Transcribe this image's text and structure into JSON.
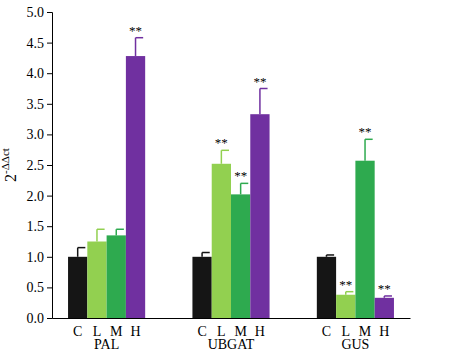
{
  "chart_data": {
    "type": "bar",
    "y_label": "2-ΔΔct",
    "categories": [
      "PAL",
      "UBGAT",
      "GUS"
    ],
    "series": [
      {
        "name": "C",
        "color": "#151515",
        "values": [
          1.0,
          1.0,
          1.0
        ],
        "errors": [
          0.15,
          0.07,
          0.03
        ]
      },
      {
        "name": "L",
        "color": "#92d050",
        "values": [
          1.25,
          2.52,
          0.38
        ],
        "errors": [
          0.2,
          0.22,
          0.05
        ]
      },
      {
        "name": "M",
        "color": "#2eaa4f",
        "values": [
          1.35,
          2.02,
          2.57
        ],
        "errors": [
          0.1,
          0.18,
          0.35
        ]
      },
      {
        "name": "H",
        "color": "#7030a0",
        "values": [
          4.28,
          3.33,
          0.33
        ],
        "errors": [
          0.3,
          0.42,
          0.03
        ]
      }
    ],
    "ylim": [
      0,
      5
    ],
    "yticks": [
      {
        "value": 0,
        "label": "0.0"
      },
      {
        "value": 0.5,
        "label": "0.5"
      },
      {
        "value": 1,
        "label": "1.0"
      },
      {
        "value": 1.5,
        "label": "1.5"
      },
      {
        "value": 2,
        "label": "2.0"
      },
      {
        "value": 2.5,
        "label": "2.5"
      },
      {
        "value": 3,
        "label": "3.0"
      },
      {
        "value": 3.5,
        "label": "3.5"
      },
      {
        "value": 4,
        "label": "4.0"
      },
      {
        "value": 4.5,
        "label": "4.5"
      },
      {
        "value": 5,
        "label": "5.0"
      }
    ],
    "annotations": [
      {
        "text": "**",
        "series": 3,
        "category": 0
      },
      {
        "text": "**",
        "series": 1,
        "category": 1
      },
      {
        "text": "**",
        "series": 2,
        "category": 1
      },
      {
        "text": "**",
        "series": 3,
        "category": 1
      },
      {
        "text": "**",
        "series": 1,
        "category": 2
      },
      {
        "text": "**",
        "series": 2,
        "category": 2
      },
      {
        "text": "**",
        "series": 3,
        "category": 2
      }
    ]
  }
}
